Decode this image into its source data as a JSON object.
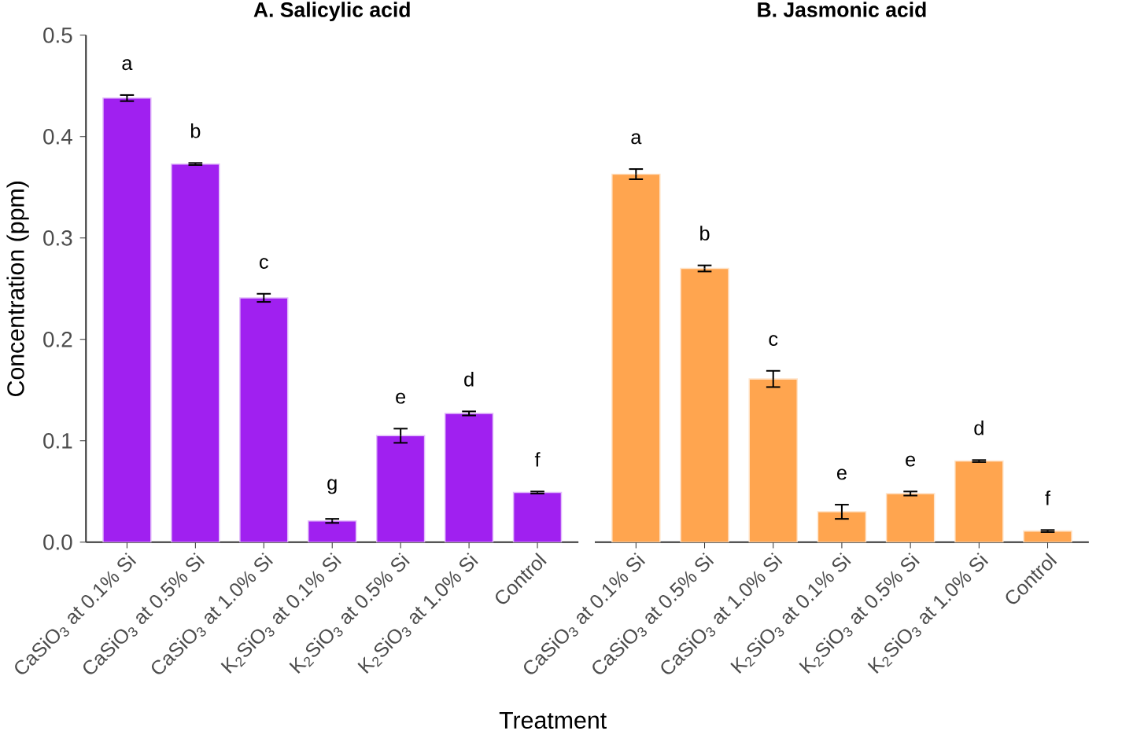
{
  "chart_data": [
    {
      "type": "bar",
      "title": "A. Salicylic acid",
      "xlabel": "Treatment",
      "ylabel": "Concentration (ppm)",
      "categories": [
        "CaSiO$_{3}$ at 0.1% Si",
        "CaSiO$_{3}$ at 0.5% Si",
        "CaSiO$_{3}$ at 1.0% Si",
        "K$_{2}$SiO$_{3}$ at 0.1% Si",
        "K$_{2}$SiO$_{3}$ at 0.5% Si",
        "K$_{2}$SiO$_{3}$ at 1.0% Si",
        "Control"
      ],
      "values": [
        0.438,
        0.373,
        0.241,
        0.021,
        0.105,
        0.127,
        0.049
      ],
      "errors": [
        0.003,
        0.001,
        0.004,
        0.002,
        0.007,
        0.002,
        0.001
      ],
      "color": "#a020f0",
      "ylim": [
        0,
        0.5
      ],
      "yticks": [
        {
          "value": 0,
          "label": "0.0"
        },
        0.1,
        0.2,
        0.3,
        0.4,
        0.5
      ],
      "grid": false,
      "annotations": [
        {
          "text": "a",
          "x": "CaSiO$_{3}$ at 0.1% Si",
          "y": 0.438
        },
        {
          "text": "b",
          "x": "CaSiO$_{3}$ at 0.5% Si",
          "y": 0.373
        },
        {
          "text": "c",
          "x": "CaSiO$_{3}$ at 1.0% Si",
          "y": 0.241
        },
        {
          "text": "g",
          "x": "K$_{2}$SiO$_{3}$ at 0.1% Si",
          "y": 0.021
        },
        {
          "text": "e",
          "x": "K$_{2}$SiO$_{3}$ at 0.5% Si",
          "y": 0.105
        },
        {
          "text": "d",
          "x": "K$_{2}$SiO$_{3}$ at 1.0% Si",
          "y": 0.127
        },
        {
          "text": "f",
          "x": "Control",
          "y": 0.049
        }
      ]
    },
    {
      "type": "bar",
      "title": "B. Jasmonic acid",
      "categories": [
        "CaSiO$_{3}$ at 0.1% Si",
        "CaSiO$_{3}$ at 0.5% Si",
        "CaSiO$_{3}$ at 1.0% Si",
        "K$_{2}$SiO$_{3}$ at 0.1% Si",
        "K$_{2}$SiO$_{3}$ at 0.5% Si",
        "K$_{2}$SiO$_{3}$ at 1.0% Si",
        "Control"
      ],
      "values": [
        0.363,
        0.27,
        0.161,
        0.03,
        0.048,
        0.08,
        0.011
      ],
      "errors": [
        0.005,
        0.003,
        0.008,
        0.007,
        0.002,
        0.001,
        0.001
      ],
      "color": "#ffa54f",
      "ylim": [
        0,
        0.5
      ],
      "tick_labels": "x",
      "grid": false,
      "annotations": [
        {
          "text": "a",
          "x": "CaSiO$_{3}$ at 0.1% Si",
          "y": 0.363
        },
        {
          "text": "b",
          "x": "CaSiO$_{3}$ at 0.5% Si",
          "y": 0.27
        },
        {
          "text": "c",
          "x": "CaSiO$_{3}$ at 1.0% Si",
          "y": 0.161
        },
        {
          "text": "e",
          "x": "K$_{2}$SiO$_{3}$ at 0.1% Si",
          "y": 0.03
        },
        {
          "text": "e",
          "x": "K$_{2}$SiO$_{3}$ at 0.5% Si",
          "y": 0.048
        },
        {
          "text": "d",
          "x": "K$_{2}$SiO$_{3}$ at 1.0% Si",
          "y": 0.08
        },
        {
          "text": "f",
          "x": "Control",
          "y": 0.011
        }
      ]
    }
  ]
}
